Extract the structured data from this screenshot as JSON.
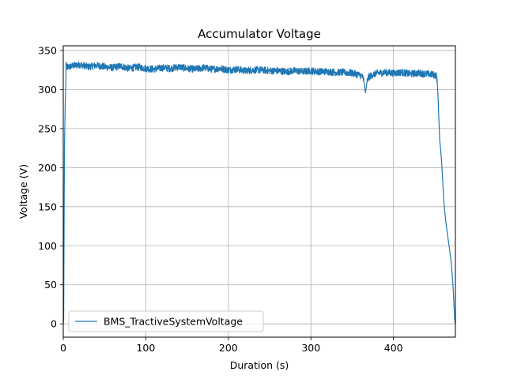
{
  "chart_data": {
    "type": "line",
    "title": "Accumulator Voltage",
    "xlabel": "Duration (s)",
    "ylabel": "Voltage (V)",
    "xlim": [
      0,
      475
    ],
    "ylim": [
      -17,
      356
    ],
    "xticks": [
      0,
      100,
      200,
      300,
      400
    ],
    "yticks": [
      0,
      50,
      100,
      150,
      200,
      250,
      300,
      350
    ],
    "grid": true,
    "legend_position": "lower-left",
    "series": [
      {
        "name": "BMS_TractiveSystemVoltage",
        "color": "#1f77b4",
        "points": [
          [
            0,
            0
          ],
          [
            0.5,
            5
          ],
          [
            1,
            120
          ],
          [
            1.5,
            230
          ],
          [
            2,
            260
          ],
          [
            2.5,
            290
          ],
          [
            3,
            300
          ],
          [
            3.5,
            335
          ],
          [
            4,
            328
          ],
          [
            10,
            330
          ],
          [
            20,
            332
          ],
          [
            30,
            329
          ],
          [
            40,
            331
          ],
          [
            50,
            329
          ],
          [
            60,
            328
          ],
          [
            70,
            330
          ],
          [
            80,
            327
          ],
          [
            90,
            329
          ],
          [
            100,
            327
          ],
          [
            110,
            326
          ],
          [
            120,
            328
          ],
          [
            130,
            327
          ],
          [
            140,
            329
          ],
          [
            150,
            327
          ],
          [
            160,
            326
          ],
          [
            170,
            328
          ],
          [
            180,
            326
          ],
          [
            190,
            327
          ],
          [
            200,
            325
          ],
          [
            210,
            326
          ],
          [
            220,
            324
          ],
          [
            230,
            325
          ],
          [
            240,
            325
          ],
          [
            250,
            324
          ],
          [
            260,
            324
          ],
          [
            270,
            323
          ],
          [
            280,
            324
          ],
          [
            290,
            323
          ],
          [
            300,
            324
          ],
          [
            310,
            323
          ],
          [
            320,
            323
          ],
          [
            330,
            322
          ],
          [
            340,
            322
          ],
          [
            350,
            321
          ],
          [
            358,
            319
          ],
          [
            362,
            317
          ],
          [
            364,
            312
          ],
          [
            366,
            296
          ],
          [
            368,
            310
          ],
          [
            370,
            316
          ],
          [
            375,
            319
          ],
          [
            380,
            321
          ],
          [
            390,
            322
          ],
          [
            400,
            321
          ],
          [
            410,
            322
          ],
          [
            420,
            320
          ],
          [
            430,
            321
          ],
          [
            440,
            320
          ],
          [
            448,
            319
          ],
          [
            452,
            318
          ],
          [
            453,
            310
          ],
          [
            454,
            290
          ],
          [
            455,
            262
          ],
          [
            456,
            235
          ],
          [
            457,
            225
          ],
          [
            458,
            212
          ],
          [
            459,
            195
          ],
          [
            460,
            175
          ],
          [
            461,
            158
          ],
          [
            462,
            145
          ],
          [
            463,
            135
          ],
          [
            464,
            125
          ],
          [
            466,
            110
          ],
          [
            468,
            95
          ],
          [
            470,
            78
          ],
          [
            471,
            65
          ],
          [
            472,
            50
          ],
          [
            473,
            30
          ],
          [
            474,
            10
          ],
          [
            474.6,
            0
          ]
        ]
      }
    ]
  }
}
